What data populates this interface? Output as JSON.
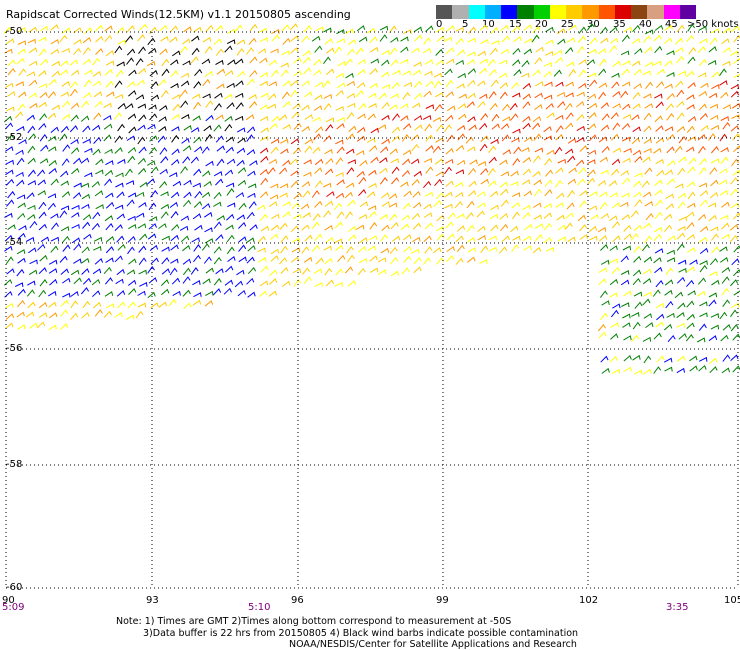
{
  "title": "Rapidscat Corrected Winds(12.5KM) v1.1 20150805 ascending",
  "legend": {
    "colors": [
      "#555555",
      "#b0b0b0",
      "#00ffff",
      "#00b0ff",
      "#0000ff",
      "#008000",
      "#00d000",
      "#ffff00",
      "#ffcc00",
      "#ff9900",
      "#ff5500",
      "#dd0000",
      "#8b4513",
      "#d8a080",
      "#ff00ff",
      "#6000a0"
    ],
    "labels": [
      "0",
      "5",
      "10",
      "15",
      "20",
      "25",
      "30",
      "35",
      "40",
      "45",
      ">50 knots"
    ]
  },
  "lat_labels": [
    "-50",
    "-52",
    "-54",
    "-56",
    "-58",
    "-60"
  ],
  "lon_labels": [
    "90",
    "93",
    "96",
    "99",
    "102",
    "105"
  ],
  "time_labels": [
    "5:09",
    "5:10",
    "3:35"
  ],
  "note": {
    "line1": "Note: 1) Times are GMT 2)Times along bottom correspond to measurement at -50S",
    "line2": "3)Data buffer is 22 hrs from 20150805 4) Black wind barbs indicate possible contamination",
    "line3": "NOAA/NESDIS/Center for Satellite Applications and Research"
  }
}
